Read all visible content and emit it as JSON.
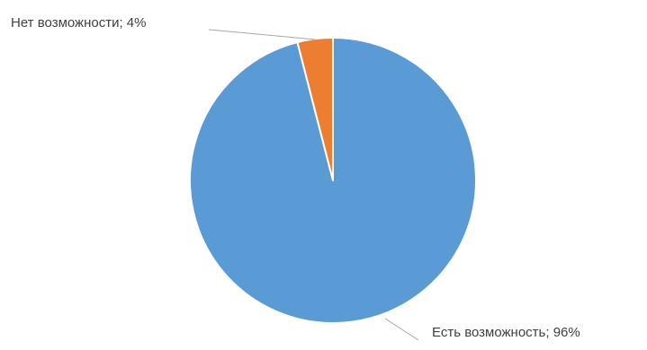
{
  "chart_data": {
    "type": "pie",
    "title": "",
    "slices": [
      {
        "label": "Есть возможность",
        "value": 96,
        "color": "#5b9bd5",
        "data_label": "Есть возможность; 96%"
      },
      {
        "label": "Нет возможности",
        "value": 4,
        "color": "#ed7d31",
        "data_label": "Нет возможности; 4%"
      }
    ],
    "start_angle_deg": 0,
    "direction": "clockwise",
    "legend": "none",
    "leader_line_color": "#a6a6a6"
  }
}
